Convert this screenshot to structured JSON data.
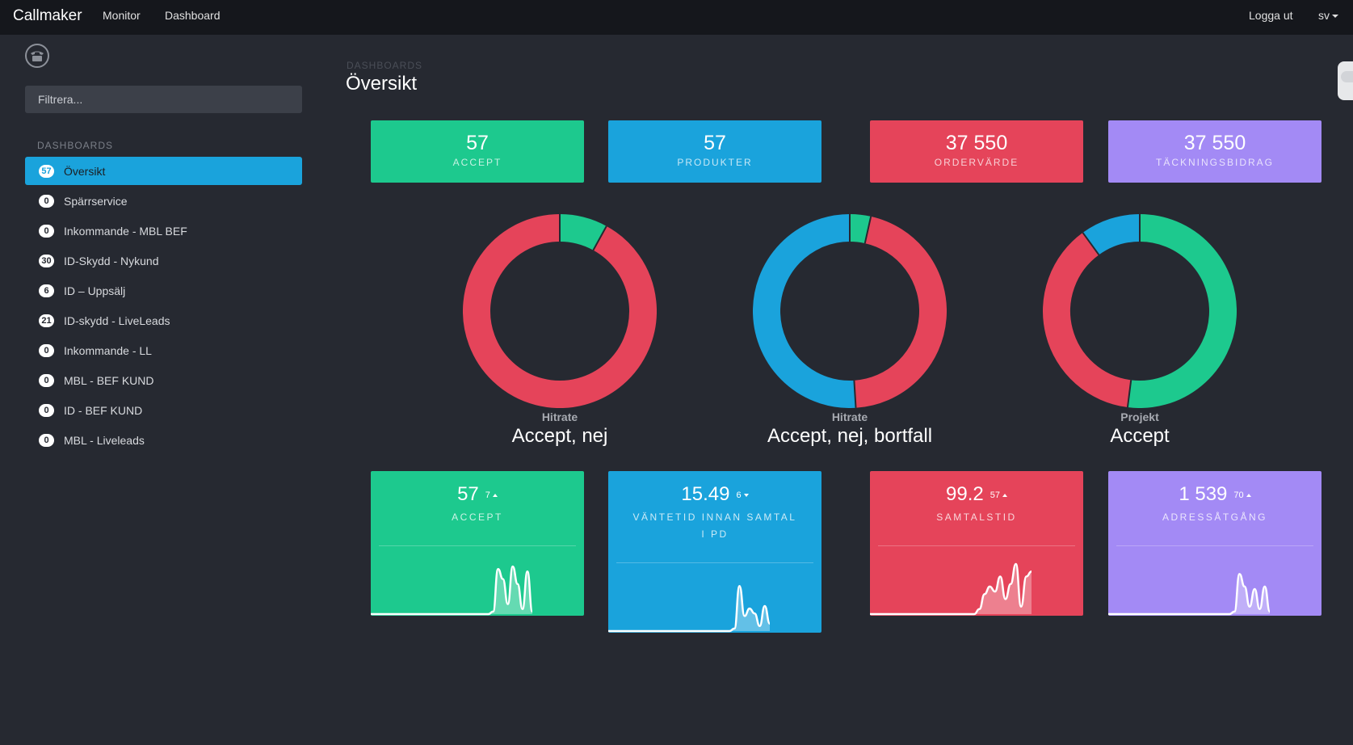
{
  "navbar": {
    "brand": "Callmaker",
    "links": [
      "Monitor",
      "Dashboard"
    ],
    "logout": "Logga ut",
    "language": "sv"
  },
  "sidebar": {
    "icon": "phone-icon",
    "filter_placeholder": "Filtrera...",
    "heading": "DASHBOARDS",
    "items": [
      {
        "count": "57",
        "label": "Översikt",
        "active": true
      },
      {
        "count": "0",
        "label": "Spärrservice"
      },
      {
        "count": "0",
        "label": "Inkommande - MBL BEF"
      },
      {
        "count": "30",
        "label": "ID-Skydd - Nykund"
      },
      {
        "count": "6",
        "label": "ID – Uppsälj"
      },
      {
        "count": "21",
        "label": "ID-skydd - LiveLeads"
      },
      {
        "count": "0",
        "label": "Inkommande - LL"
      },
      {
        "count": "0",
        "label": "MBL - BEF KUND"
      },
      {
        "count": "0",
        "label": "ID - BEF KUND"
      },
      {
        "count": "0",
        "label": "MBL - Liveleads"
      }
    ]
  },
  "header": {
    "breadcrumb": "DASHBOARDS",
    "title": "Översikt"
  },
  "colors": {
    "green": "#1dc98e",
    "blue": "#1aa3dc",
    "red": "#e5445a",
    "purple": "#a38af5",
    "background": "#262931",
    "navbar": "#15171c"
  },
  "kpis": [
    {
      "value": "57",
      "label": "ACCEPT",
      "color": "#1dc98e"
    },
    {
      "value": "57",
      "label": "PRODUKTER",
      "color": "#1aa3dc"
    },
    {
      "value": "37 550",
      "label": "ORDERVÄRDE",
      "color": "#e5445a"
    },
    {
      "value": "37 550",
      "label": "TÄCKNINGSBIDRAG",
      "color": "#a38af5"
    }
  ],
  "chart_data": [
    {
      "type": "pie",
      "subtitle": "Hitrate",
      "title": "Accept, nej",
      "slices": [
        {
          "value": 8,
          "color": "#1dc98e"
        },
        {
          "value": 92,
          "color": "#e5445a"
        }
      ]
    },
    {
      "type": "pie",
      "subtitle": "Hitrate",
      "title": "Accept, nej, bortfall",
      "slices": [
        {
          "value": 3.5,
          "color": "#1dc98e"
        },
        {
          "value": 45.5,
          "color": "#e5445a"
        },
        {
          "value": 51,
          "color": "#1aa3dc"
        }
      ]
    },
    {
      "type": "pie",
      "subtitle": "Projekt",
      "title": "Accept",
      "slices": [
        {
          "value": 52,
          "color": "#1dc98e"
        },
        {
          "value": 38,
          "color": "#e5445a"
        },
        {
          "value": 10,
          "color": "#1aa3dc"
        }
      ]
    }
  ],
  "stats": [
    {
      "value": "57",
      "delta": "7",
      "trend": "up",
      "label": "ACCEPT",
      "color": "#1dc98e",
      "spark": [
        0,
        0,
        0,
        0,
        0,
        0,
        0,
        0,
        0,
        0,
        0,
        0,
        0,
        0,
        0,
        0,
        0,
        0,
        0,
        0,
        0,
        0,
        0,
        0,
        0,
        0.05,
        0.9,
        0.7,
        0.2,
        0.95,
        0.6,
        0.1,
        0.85,
        0.05
      ]
    },
    {
      "value": "15.49",
      "delta": "6",
      "trend": "down",
      "label": "VÄNTETID INNAN SAMTAL I PD",
      "color": "#1aa3dc",
      "spark": [
        0,
        0,
        0,
        0,
        0,
        0,
        0,
        0,
        0,
        0,
        0,
        0,
        0,
        0,
        0,
        0,
        0,
        0,
        0,
        0,
        0,
        0,
        0,
        0,
        0,
        0.05,
        0.9,
        0.3,
        0.45,
        0.35,
        0.1,
        0.5,
        0.15
      ]
    },
    {
      "value": "99.2",
      "delta": "57",
      "trend": "up",
      "label": "SAMTALSTID",
      "color": "#e5445a",
      "spark": [
        0,
        0,
        0,
        0,
        0,
        0,
        0,
        0,
        0,
        0,
        0,
        0,
        0,
        0,
        0,
        0,
        0,
        0,
        0,
        0,
        0,
        0.1,
        0.4,
        0.55,
        0.45,
        0.75,
        0.3,
        0.6,
        1.0,
        0.15,
        0.75,
        0.85
      ]
    },
    {
      "value": "1 539",
      "delta": "70",
      "trend": "up",
      "label": "ADRESSÅTGÅNG",
      "color": "#a38af5",
      "spark": [
        0,
        0,
        0,
        0,
        0,
        0,
        0,
        0,
        0,
        0,
        0,
        0,
        0,
        0,
        0,
        0,
        0,
        0,
        0,
        0,
        0,
        0,
        0,
        0,
        0,
        0.05,
        0.8,
        0.55,
        0.15,
        0.5,
        0.1,
        0.55,
        0.05
      ]
    }
  ]
}
